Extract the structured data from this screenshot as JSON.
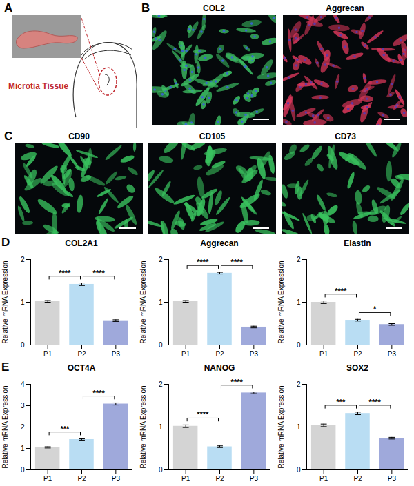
{
  "panel_labels": [
    "A",
    "B",
    "C",
    "D",
    "E"
  ],
  "image_panels": [
    {
      "label": "A",
      "caption": "Microtia Tissue"
    },
    {
      "label": "B",
      "titles": [
        "COL2",
        "Aggrecan"
      ]
    },
    {
      "label": "C",
      "titles": [
        "CD90",
        "CD105",
        "CD73"
      ]
    }
  ],
  "chart_data": [
    {
      "type": "bar",
      "title": "COL2A1",
      "ylabel": "Relative mRNA Expression",
      "categories": [
        "P1",
        "P2",
        "P3"
      ],
      "values": [
        1.02,
        1.42,
        0.57
      ],
      "errors": [
        0.02,
        0.03,
        0.02
      ],
      "colors": [
        "#d4d4d4",
        "#b9ddf3",
        "#9fa9db"
      ],
      "ylim": [
        0,
        2
      ],
      "yticks": [
        0,
        1,
        2
      ],
      "significance": [
        {
          "pair": [
            "P1",
            "P2"
          ],
          "label": "****"
        },
        {
          "pair": [
            "P2",
            "P3"
          ],
          "label": "****"
        }
      ]
    },
    {
      "type": "bar",
      "title": "Aggrecan",
      "ylabel": "Relative mRNA Expression",
      "categories": [
        "P1",
        "P2",
        "P3"
      ],
      "values": [
        1.02,
        1.68,
        0.42
      ],
      "errors": [
        0.02,
        0.02,
        0.02
      ],
      "colors": [
        "#d4d4d4",
        "#b9ddf3",
        "#9fa9db"
      ],
      "ylim": [
        0,
        2
      ],
      "yticks": [
        0,
        1,
        2
      ],
      "significance": [
        {
          "pair": [
            "P1",
            "P2"
          ],
          "label": "****"
        },
        {
          "pair": [
            "P2",
            "P3"
          ],
          "label": "****"
        }
      ]
    },
    {
      "type": "bar",
      "title": "Elastin",
      "ylabel": "Relative mRNA Expression",
      "categories": [
        "P1",
        "P2",
        "P3"
      ],
      "values": [
        1.0,
        0.58,
        0.48
      ],
      "errors": [
        0.03,
        0.02,
        0.02
      ],
      "colors": [
        "#d4d4d4",
        "#b9ddf3",
        "#9fa9db"
      ],
      "ylim": [
        0,
        2
      ],
      "yticks": [
        0,
        1,
        2
      ],
      "significance": [
        {
          "pair": [
            "P1",
            "P2"
          ],
          "label": "****"
        },
        {
          "pair": [
            "P2",
            "P3"
          ],
          "label": "*"
        }
      ]
    },
    {
      "type": "bar",
      "title": "OCT4A",
      "ylabel": "Relative mRNA Expression",
      "categories": [
        "P1",
        "P2",
        "P3"
      ],
      "values": [
        1.05,
        1.42,
        3.08
      ],
      "errors": [
        0.03,
        0.03,
        0.05
      ],
      "colors": [
        "#d4d4d4",
        "#b9ddf3",
        "#9fa9db"
      ],
      "ylim": [
        0,
        4
      ],
      "yticks": [
        0,
        1,
        2,
        3,
        4
      ],
      "significance": [
        {
          "pair": [
            "P1",
            "P2"
          ],
          "label": "***"
        },
        {
          "pair": [
            "P2",
            "P3"
          ],
          "label": "****"
        }
      ]
    },
    {
      "type": "bar",
      "title": "NANOG",
      "ylabel": "Relative mRNA Expression",
      "categories": [
        "P1",
        "P2",
        "P3"
      ],
      "values": [
        1.02,
        0.54,
        1.8
      ],
      "errors": [
        0.03,
        0.02,
        0.02
      ],
      "colors": [
        "#d4d4d4",
        "#b9ddf3",
        "#9fa9db"
      ],
      "ylim": [
        0,
        2
      ],
      "yticks": [
        0,
        1,
        2
      ],
      "significance": [
        {
          "pair": [
            "P1",
            "P2"
          ],
          "label": "****"
        },
        {
          "pair": [
            "P2",
            "P3"
          ],
          "label": "****"
        }
      ]
    },
    {
      "type": "bar",
      "title": "SOX2",
      "ylabel": "Relative mRNA Expression",
      "categories": [
        "P1",
        "P2",
        "P3"
      ],
      "values": [
        1.04,
        1.32,
        0.74
      ],
      "errors": [
        0.03,
        0.03,
        0.02
      ],
      "colors": [
        "#d4d4d4",
        "#b9ddf3",
        "#9fa9db"
      ],
      "ylim": [
        0,
        2
      ],
      "yticks": [
        0,
        1,
        2
      ],
      "significance": [
        {
          "pair": [
            "P1",
            "P2"
          ],
          "label": "***"
        },
        {
          "pair": [
            "P2",
            "P3"
          ],
          "label": "****"
        }
      ]
    }
  ]
}
